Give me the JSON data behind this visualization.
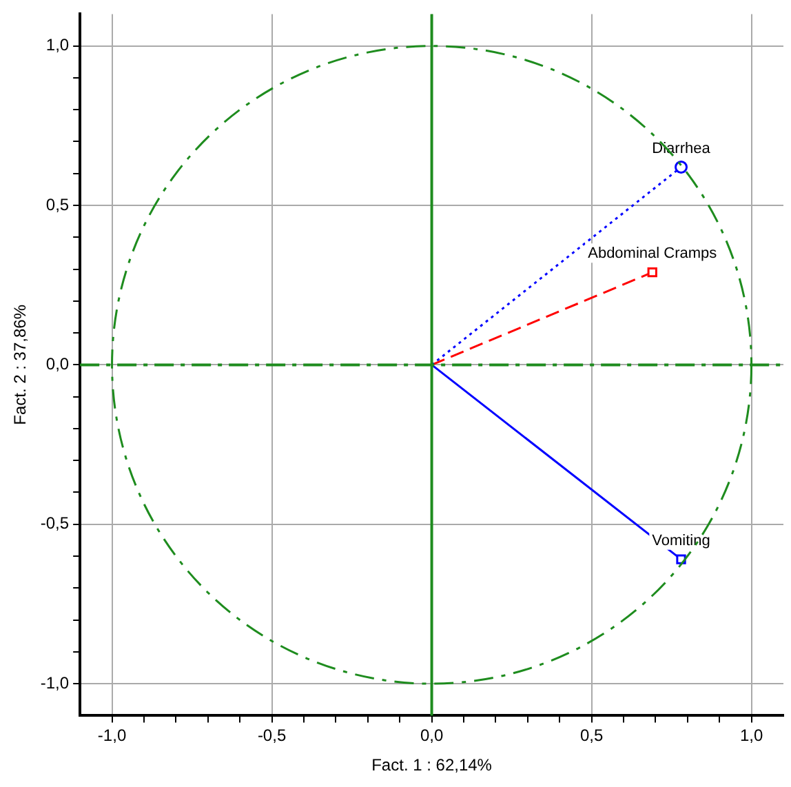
{
  "chart_data": {
    "type": "line",
    "xlabel": "Fact. 1 : 62,14%",
    "ylabel": "Fact. 2 : 37,86%",
    "xlim": [
      -1.1,
      1.1
    ],
    "ylim": [
      -1.1,
      1.1
    ],
    "xticks": [
      {
        "value": -1,
        "label": "-1,0"
      },
      {
        "value": -0.9,
        "label": null
      },
      {
        "value": -0.8,
        "label": null
      },
      {
        "value": -0.7,
        "label": null
      },
      {
        "value": -0.6,
        "label": null
      },
      {
        "value": -0.5,
        "label": "-0,5"
      },
      {
        "value": -0.4,
        "label": null
      },
      {
        "value": -0.3,
        "label": null
      },
      {
        "value": -0.2,
        "label": null
      },
      {
        "value": -0.1,
        "label": null
      },
      {
        "value": 0,
        "label": "0,0"
      },
      {
        "value": 0.1,
        "label": null
      },
      {
        "value": 0.2,
        "label": null
      },
      {
        "value": 0.3,
        "label": null
      },
      {
        "value": 0.4,
        "label": null
      },
      {
        "value": 0.5,
        "label": "0,5"
      },
      {
        "value": 0.6,
        "label": null
      },
      {
        "value": 0.7,
        "label": null
      },
      {
        "value": 0.8,
        "label": null
      },
      {
        "value": 0.9,
        "label": null
      },
      {
        "value": 1,
        "label": "1,0"
      }
    ],
    "yticks": [
      {
        "value": -1,
        "label": "-1,0"
      },
      {
        "value": -0.9,
        "label": null
      },
      {
        "value": -0.8,
        "label": null
      },
      {
        "value": -0.7,
        "label": null
      },
      {
        "value": -0.6,
        "label": null
      },
      {
        "value": -0.5,
        "label": "-0,5"
      },
      {
        "value": -0.4,
        "label": null
      },
      {
        "value": -0.3,
        "label": null
      },
      {
        "value": -0.2,
        "label": null
      },
      {
        "value": -0.1,
        "label": null
      },
      {
        "value": 0,
        "label": "0,0"
      },
      {
        "value": 0.1,
        "label": null
      },
      {
        "value": 0.2,
        "label": null
      },
      {
        "value": 0.3,
        "label": null
      },
      {
        "value": 0.4,
        "label": null
      },
      {
        "value": 0.5,
        "label": "0,5"
      },
      {
        "value": 0.6,
        "label": null
      },
      {
        "value": 0.7,
        "label": null
      },
      {
        "value": 0.8,
        "label": null
      },
      {
        "value": 0.9,
        "label": null
      },
      {
        "value": 1,
        "label": "1,0"
      }
    ],
    "grid": true,
    "legend": false,
    "ref_lines": [
      {
        "axis": "x",
        "value": 0,
        "color": "#1e8c1e",
        "line_style": "solid"
      },
      {
        "axis": "y",
        "value": 0,
        "color": "#1e8c1e",
        "line_style": "dashed"
      }
    ],
    "series": [
      {
        "type": "line",
        "name": "Diarrhea",
        "color": "#0000ff",
        "marker": "circle",
        "line_style": "dotted",
        "x": [
          0,
          0.78
        ],
        "values": [
          0,
          0.62
        ]
      },
      {
        "type": "line",
        "name": "Abdominal Cramps",
        "color": "#ff0000",
        "marker": "square",
        "line_style": "dashed",
        "x": [
          0,
          0.69
        ],
        "values": [
          0,
          0.29
        ]
      },
      {
        "type": "line",
        "name": "Vomiting",
        "color": "#0000ff",
        "marker": "square",
        "line_style": "solid",
        "x": [
          0,
          0.78
        ],
        "values": [
          0,
          -0.61
        ]
      }
    ]
  }
}
